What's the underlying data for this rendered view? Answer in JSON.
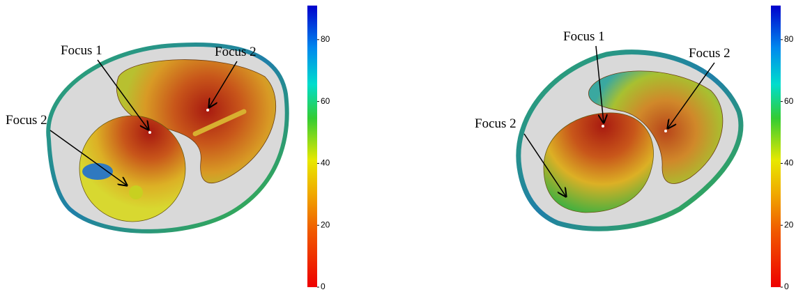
{
  "panels": [
    {
      "labels": [
        "Focus 1",
        "Focus 2",
        "Focus 2"
      ],
      "colorbar": {
        "clim": [
          0,
          91
        ],
        "ticks": [
          0,
          20,
          40,
          60,
          80
        ]
      }
    },
    {
      "labels": [
        "Focus 1",
        "Focus 2",
        "Focus 2"
      ],
      "colorbar": {
        "clim": [
          0,
          91
        ],
        "ticks": [
          0,
          20,
          40,
          60,
          80
        ]
      }
    }
  ]
}
